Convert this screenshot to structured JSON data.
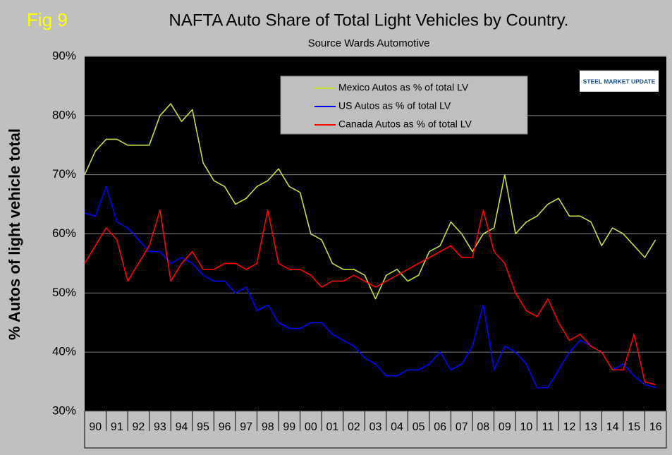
{
  "chart_data": {
    "type": "line",
    "figure_label": "Fig 9",
    "title": "NAFTA   Auto Share of Total Light Vehicles by Country.",
    "subtitle": "Source Wards Automotive",
    "y_label": "% Autos of light vehicle total",
    "logo": "STEEL MARKET UPDATE",
    "x": [
      1990.0,
      1990.5,
      1991.0,
      1991.5,
      1992.0,
      1992.5,
      1993.0,
      1993.5,
      1994.0,
      1994.5,
      1995.0,
      1995.5,
      1996.0,
      1996.5,
      1997.0,
      1997.5,
      1998.0,
      1998.5,
      1999.0,
      1999.5,
      2000.0,
      2000.5,
      2001.0,
      2001.5,
      2002.0,
      2002.5,
      2003.0,
      2003.5,
      2004.0,
      2004.5,
      2005.0,
      2005.5,
      2006.0,
      2006.5,
      2007.0,
      2007.5,
      2008.0,
      2008.5,
      2009.0,
      2009.5,
      2010.0,
      2010.5,
      2011.0,
      2011.5,
      2012.0,
      2012.5,
      2013.0,
      2013.5,
      2014.0,
      2014.5,
      2015.0,
      2015.5,
      2016.0,
      2016.5
    ],
    "series": [
      {
        "name": "Mexico Autos as % of total LV",
        "color": "#bfe03c",
        "values": [
          70,
          74,
          76,
          76,
          75,
          75,
          75,
          80,
          82,
          79,
          81,
          72,
          69,
          68,
          65,
          66,
          68,
          69,
          71,
          68,
          67,
          60,
          59,
          55,
          54,
          54,
          53,
          49,
          53,
          54,
          52,
          53,
          57,
          58,
          62,
          60,
          57,
          60,
          61,
          70,
          60,
          62,
          63,
          65,
          66,
          63,
          63,
          62,
          58,
          61,
          60,
          58,
          56,
          59
        ]
      },
      {
        "name": "US Autos as % of total LV",
        "color": "#0000ff",
        "values": [
          63.5,
          63,
          68,
          62,
          61,
          59,
          57,
          57,
          55,
          56,
          55,
          53,
          52,
          52,
          50,
          51,
          47,
          48,
          45,
          44,
          44,
          45,
          45,
          43,
          42,
          41,
          39,
          38,
          36,
          36,
          37,
          37,
          38,
          40,
          37,
          38,
          41,
          48,
          37,
          41,
          40,
          38,
          34,
          34,
          37,
          40,
          42,
          41,
          40,
          37,
          38,
          36,
          34.5,
          34
        ]
      },
      {
        "name": "Canada Autos as % of total LV",
        "color": "#ff0000",
        "values": [
          55,
          58,
          61,
          59,
          52,
          55,
          58,
          64,
          52,
          55,
          57,
          54,
          54,
          55,
          55,
          54,
          55,
          64,
          55,
          54,
          54,
          53,
          51,
          52,
          52,
          53,
          52,
          51,
          52,
          53,
          54,
          55,
          56,
          57,
          58,
          56,
          56,
          64,
          57,
          55,
          50,
          47,
          46,
          49,
          45,
          42,
          43,
          41,
          40,
          37,
          37,
          43,
          35,
          34.5
        ]
      }
    ],
    "xlim": [
      1990,
      2017
    ],
    "xticks": [
      {
        "value": 1990.5,
        "label": "90"
      },
      {
        "value": 1991.5,
        "label": "91"
      },
      {
        "value": 1992.5,
        "label": "92"
      },
      {
        "value": 1993.5,
        "label": "93"
      },
      {
        "value": 1994.5,
        "label": "94"
      },
      {
        "value": 1995.5,
        "label": "95"
      },
      {
        "value": 1996.5,
        "label": "96"
      },
      {
        "value": 1997.5,
        "label": "97"
      },
      {
        "value": 1998.5,
        "label": "98"
      },
      {
        "value": 1999.5,
        "label": "99"
      },
      {
        "value": 2000.5,
        "label": "00"
      },
      {
        "value": 2001.5,
        "label": "01"
      },
      {
        "value": 2002.5,
        "label": "02"
      },
      {
        "value": 2003.5,
        "label": "03"
      },
      {
        "value": 2004.5,
        "label": "04"
      },
      {
        "value": 2005.5,
        "label": "05"
      },
      {
        "value": 2006.5,
        "label": "06"
      },
      {
        "value": 2007.5,
        "label": "07"
      },
      {
        "value": 2008.5,
        "label": "08"
      },
      {
        "value": 2009.5,
        "label": "09"
      },
      {
        "value": 2010.5,
        "label": "10"
      },
      {
        "value": 2011.5,
        "label": "11"
      },
      {
        "value": 2012.5,
        "label": "12"
      },
      {
        "value": 2013.5,
        "label": "13"
      },
      {
        "value": 2014.5,
        "label": "14"
      },
      {
        "value": 2015.5,
        "label": "15"
      },
      {
        "value": 2016.5,
        "label": "16"
      }
    ],
    "ylim": [
      30,
      90
    ],
    "yticks": [
      {
        "value": 30,
        "label": "30%"
      },
      {
        "value": 40,
        "label": "40%"
      },
      {
        "value": 50,
        "label": "50%"
      },
      {
        "value": 60,
        "label": "60%"
      },
      {
        "value": 70,
        "label": "70%"
      },
      {
        "value": 80,
        "label": "80%"
      },
      {
        "value": 90,
        "label": "90%"
      }
    ],
    "grid": true
  }
}
